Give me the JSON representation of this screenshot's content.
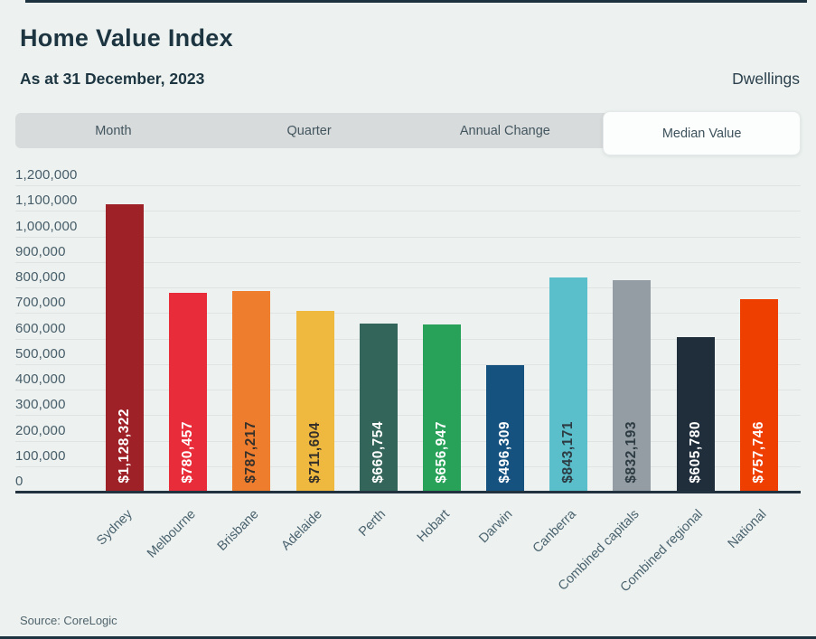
{
  "header": {
    "title": "Home Value Index",
    "subtitle": "As at 31 December, 2023",
    "right_label": "Dwellings"
  },
  "tabs": [
    {
      "label": "Month",
      "active": false
    },
    {
      "label": "Quarter",
      "active": false
    },
    {
      "label": "Annual Change",
      "active": false
    },
    {
      "label": "Median Value",
      "active": true
    }
  ],
  "chart_data": {
    "type": "bar",
    "categories": [
      "Sydney",
      "Melbourne",
      "Brisbane",
      "Adelaide",
      "Perth",
      "Hobart",
      "Darwin",
      "Canberra",
      "Combined capitals",
      "Combined regional",
      "National"
    ],
    "values": [
      1128322,
      780457,
      787217,
      711604,
      660754,
      656947,
      496309,
      843171,
      832193,
      605780,
      757746
    ],
    "value_labels": [
      "$1,128,322",
      "$780,457",
      "$787,217",
      "$711,604",
      "$660,754",
      "$656,947",
      "$496,309",
      "$843,171",
      "$832,193",
      "$605,780",
      "$757,746"
    ],
    "bar_colors": [
      "#9e2127",
      "#e92c3a",
      "#ef7d2e",
      "#efb83f",
      "#34655a",
      "#27a258",
      "#16527f",
      "#5bbecb",
      "#949da3",
      "#202e3b",
      "#ee3e00"
    ],
    "value_label_colors": [
      "#ffffff",
      "#ffffff",
      "#35302a",
      "#35302a",
      "#ffffff",
      "#ffffff",
      "#ffffff",
      "#2d3b42",
      "#2d3b42",
      "#ffffff",
      "#ffffff"
    ],
    "title": "Home Value Index — Median Value (Dwellings), as at 31 December 2023",
    "xlabel": "",
    "ylabel": "",
    "ylim": [
      0,
      1200000
    ],
    "ytick_step": 100000,
    "ytick_labels": [
      "0",
      "100,000",
      "200,000",
      "300,000",
      "400,000",
      "500,000",
      "600,000",
      "700,000",
      "800,000",
      "900,000",
      "1,000,000",
      "1,100,000",
      "1,200,000"
    ],
    "grid": true,
    "legend": "none"
  },
  "footer": {
    "source": "Source: CoreLogic"
  }
}
